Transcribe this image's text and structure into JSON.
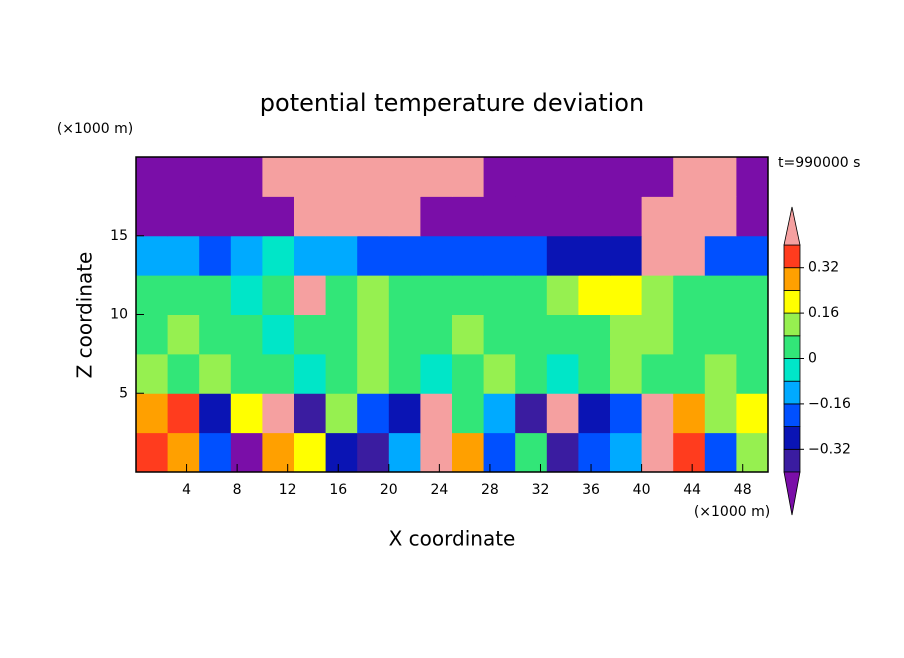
{
  "chart_data": {
    "type": "contour",
    "title": "potential temperature deviation",
    "x_label": "X coordinate",
    "y_label": "Z coordinate",
    "x_unit": "(×1000 m)",
    "y_unit": "(×1000 m)",
    "annotation": "t=990000 s",
    "xlim": [
      0,
      50
    ],
    "ylim": [
      0,
      20
    ],
    "xticks": [
      4,
      8,
      12,
      16,
      20,
      24,
      28,
      32,
      36,
      40,
      44,
      48
    ],
    "yticks": [
      5,
      10,
      15
    ],
    "x": [
      1.25,
      3.75,
      6.25,
      8.75,
      11.25,
      13.75,
      16.25,
      18.75,
      21.25,
      23.75,
      26.25,
      28.75,
      31.25,
      33.75,
      36.25,
      38.75,
      41.25,
      43.75,
      46.25,
      48.75
    ],
    "y": [
      1.25,
      3.75,
      6.25,
      8.75,
      11.25,
      13.75,
      16.25,
      18.75
    ],
    "z": [
      [
        0.36,
        0.28,
        -0.2,
        -0.45,
        0.28,
        0.2,
        -0.28,
        -0.36,
        -0.12,
        0.45,
        0.28,
        -0.2,
        0.04,
        -0.36,
        -0.2,
        -0.12,
        0.45,
        0.36,
        -0.2,
        0.12
      ],
      [
        0.28,
        0.36,
        -0.28,
        0.2,
        0.45,
        -0.36,
        0.12,
        -0.2,
        -0.28,
        0.45,
        0.04,
        -0.12,
        -0.36,
        0.45,
        -0.28,
        -0.2,
        0.45,
        0.28,
        0.12,
        0.2
      ],
      [
        0.12,
        0.04,
        0.12,
        0.04,
        0.04,
        -0.04,
        0.04,
        0.12,
        0.04,
        -0.04,
        0.04,
        0.12,
        0.04,
        -0.04,
        0.04,
        0.12,
        0.04,
        0.04,
        0.12,
        0.04
      ],
      [
        0.04,
        0.12,
        0.04,
        0.04,
        -0.04,
        0.04,
        0.04,
        0.12,
        0.04,
        0.04,
        0.12,
        0.04,
        0.04,
        0.04,
        0.04,
        0.12,
        0.12,
        0.04,
        0.04,
        0.04
      ],
      [
        0.04,
        0.04,
        0.04,
        -0.04,
        0.04,
        0.45,
        0.04,
        0.12,
        0.04,
        0.04,
        0.04,
        0.04,
        0.04,
        0.12,
        0.2,
        0.2,
        0.12,
        0.04,
        0.04,
        0.04
      ],
      [
        -0.12,
        -0.12,
        -0.2,
        -0.12,
        -0.04,
        -0.12,
        -0.12,
        -0.2,
        -0.2,
        -0.2,
        -0.2,
        -0.2,
        -0.2,
        -0.28,
        -0.28,
        -0.28,
        0.45,
        0.45,
        -0.2,
        -0.2
      ],
      [
        -0.45,
        -0.45,
        -0.45,
        -0.45,
        -0.45,
        0.45,
        0.45,
        0.45,
        0.45,
        -0.45,
        -0.45,
        -0.45,
        -0.45,
        -0.45,
        -0.45,
        -0.45,
        0.45,
        0.45,
        0.45,
        -0.45
      ],
      [
        -0.45,
        -0.45,
        -0.45,
        -0.45,
        0.45,
        0.45,
        0.45,
        0.45,
        0.45,
        0.45,
        0.45,
        -0.45,
        -0.45,
        -0.45,
        -0.45,
        -0.45,
        -0.45,
        0.45,
        0.45,
        -0.45
      ]
    ],
    "levels": [
      -0.4,
      -0.32,
      -0.24,
      -0.16,
      -0.08,
      0,
      0.08,
      0.16,
      0.24,
      0.32,
      0.4
    ],
    "colors": [
      "#7a0ea8",
      "#3a1ca0",
      "#0a14b4",
      "#0050ff",
      "#00aaff",
      "#00e6c8",
      "#32e678",
      "#96f050",
      "#ffff00",
      "#ffa000",
      "#ff3c1e",
      "#f5a0a0"
    ],
    "colorbar_ticks": [
      {
        "value": -0.32,
        "label": "−0.32"
      },
      {
        "value": -0.16,
        "label": "−0.16"
      },
      0,
      0.16,
      0.32
    ]
  }
}
